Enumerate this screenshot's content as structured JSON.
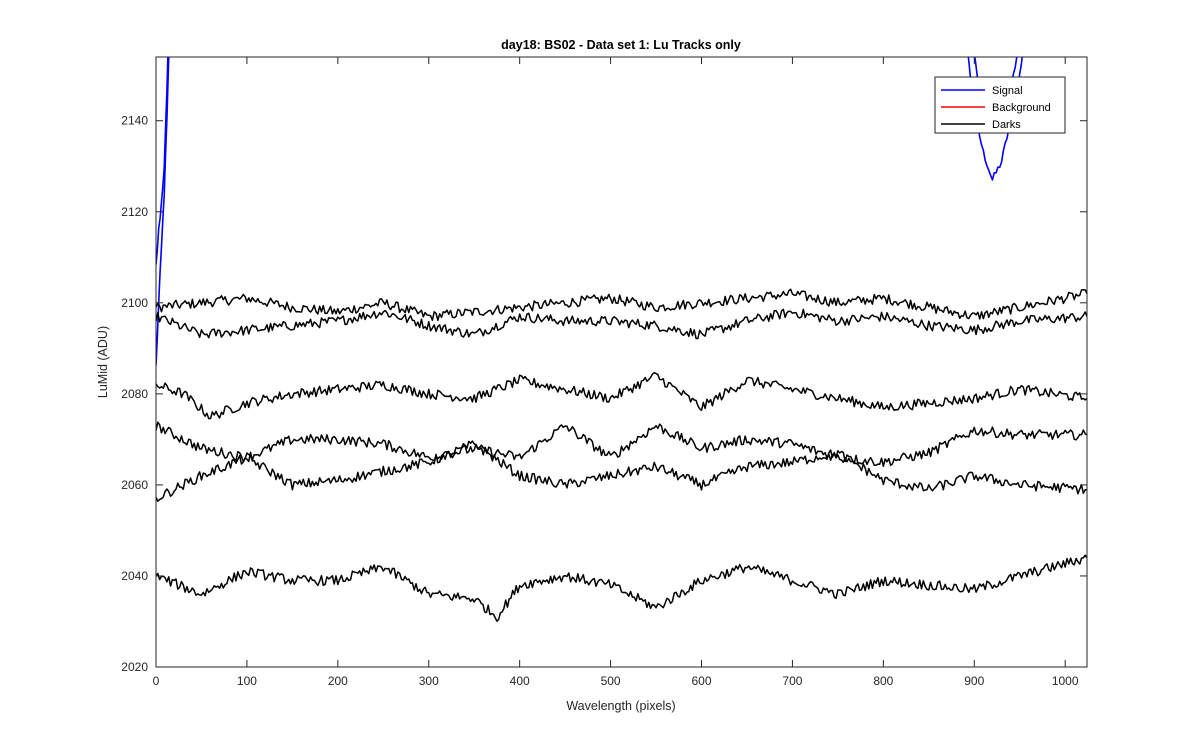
{
  "chart_data": {
    "type": "line",
    "title": "day18: BS02 - Data set 1: Lu Tracks only",
    "xlabel": "Wavelength (pixels)",
    "ylabel": "LuMid (ADU)",
    "xlim": [
      0,
      1024
    ],
    "ylim": [
      2020,
      2154
    ],
    "xticks": [
      0,
      100,
      200,
      300,
      400,
      500,
      600,
      700,
      800,
      900,
      1000
    ],
    "yticks": [
      2020,
      2040,
      2060,
      2080,
      2100,
      2120,
      2140
    ],
    "grid": false,
    "legend": {
      "location": "top-right",
      "entries": [
        {
          "label": "Signal",
          "color": "#0000ff"
        },
        {
          "label": "Background",
          "color": "#ff0000"
        },
        {
          "label": "Darks",
          "color": "#000000"
        }
      ]
    },
    "series": [
      {
        "group": "Signal",
        "color": "#0000ff",
        "x": [
          0,
          3,
          6,
          9,
          12,
          15
        ],
        "y": [
          2086,
          2100,
          2112,
          2124,
          2140,
          2160
        ]
      },
      {
        "group": "Signal",
        "color": "#0000ff",
        "x": [
          0,
          3,
          6,
          9,
          12,
          14
        ],
        "y": [
          2108,
          2116,
          2122,
          2130,
          2146,
          2160
        ]
      },
      {
        "group": "Signal",
        "color": "#0000ff",
        "x": [
          890,
          900,
          910,
          920,
          930,
          940,
          950,
          957
        ],
        "y": [
          2160,
          2142,
          2133,
          2127,
          2131,
          2140,
          2150,
          2160
        ]
      },
      {
        "group": "Signal",
        "color": "#0000ff",
        "x": [
          895,
          905,
          915,
          925,
          935,
          945,
          952
        ],
        "y": [
          2160,
          2148,
          2140,
          2138,
          2142,
          2152,
          2160
        ]
      },
      {
        "group": "Darks",
        "color": "#000000",
        "x": [
          0,
          50,
          100,
          150,
          200,
          250,
          300,
          350,
          400,
          450,
          500,
          550,
          600,
          650,
          700,
          750,
          800,
          850,
          900,
          950,
          1024
        ],
        "y": [
          2099,
          2100,
          2101,
          2099,
          2098,
          2100,
          2097,
          2098,
          2099,
          2100,
          2101,
          2099,
          2100,
          2101,
          2102,
          2100,
          2101,
          2099,
          2097,
          2099,
          2102
        ]
      },
      {
        "group": "Darks",
        "color": "#000000",
        "x": [
          0,
          50,
          100,
          150,
          200,
          250,
          300,
          350,
          400,
          450,
          500,
          550,
          600,
          650,
          700,
          750,
          800,
          850,
          900,
          950,
          1024
        ],
        "y": [
          2097,
          2093,
          2094,
          2095,
          2096,
          2098,
          2095,
          2093,
          2097,
          2096,
          2096,
          2095,
          2093,
          2096,
          2098,
          2096,
          2097,
          2095,
          2094,
          2096,
          2097
        ]
      },
      {
        "group": "Darks",
        "color": "#000000",
        "x": [
          0,
          30,
          60,
          100,
          150,
          200,
          250,
          300,
          350,
          400,
          450,
          500,
          550,
          600,
          650,
          700,
          750,
          800,
          850,
          900,
          950,
          1024
        ],
        "y": [
          2082,
          2080,
          2075,
          2078,
          2080,
          2081,
          2082,
          2080,
          2079,
          2083,
          2081,
          2079,
          2084,
          2077,
          2083,
          2081,
          2079,
          2077,
          2078,
          2079,
          2081,
          2079
        ]
      },
      {
        "group": "Darks",
        "color": "#000000",
        "x": [
          0,
          50,
          100,
          150,
          200,
          250,
          300,
          350,
          400,
          450,
          500,
          550,
          600,
          650,
          700,
          750,
          800,
          850,
          900,
          950,
          1024
        ],
        "y": [
          2073,
          2068,
          2066,
          2070,
          2070,
          2069,
          2066,
          2068,
          2066,
          2073,
          2066,
          2073,
          2068,
          2070,
          2069,
          2066,
          2065,
          2067,
          2072,
          2071,
          2071
        ]
      },
      {
        "group": "Darks",
        "color": "#000000",
        "x": [
          0,
          50,
          100,
          150,
          200,
          250,
          300,
          350,
          400,
          450,
          500,
          550,
          600,
          650,
          700,
          750,
          800,
          850,
          900,
          950,
          1024
        ],
        "y": [
          2057,
          2062,
          2066,
          2060,
          2061,
          2063,
          2065,
          2069,
          2062,
          2060,
          2062,
          2064,
          2060,
          2064,
          2065,
          2067,
          2061,
          2059,
          2062,
          2060,
          2059
        ]
      },
      {
        "group": "Darks",
        "color": "#000000",
        "x": [
          0,
          50,
          100,
          150,
          200,
          250,
          300,
          350,
          375,
          400,
          450,
          500,
          550,
          600,
          650,
          700,
          750,
          800,
          850,
          900,
          950,
          1024
        ],
        "y": [
          2040,
          2036,
          2041,
          2039,
          2039,
          2042,
          2036,
          2035,
          2031,
          2038,
          2040,
          2038,
          2033,
          2039,
          2042,
          2039,
          2036,
          2039,
          2038,
          2037,
          2040,
          2044
        ]
      }
    ]
  }
}
